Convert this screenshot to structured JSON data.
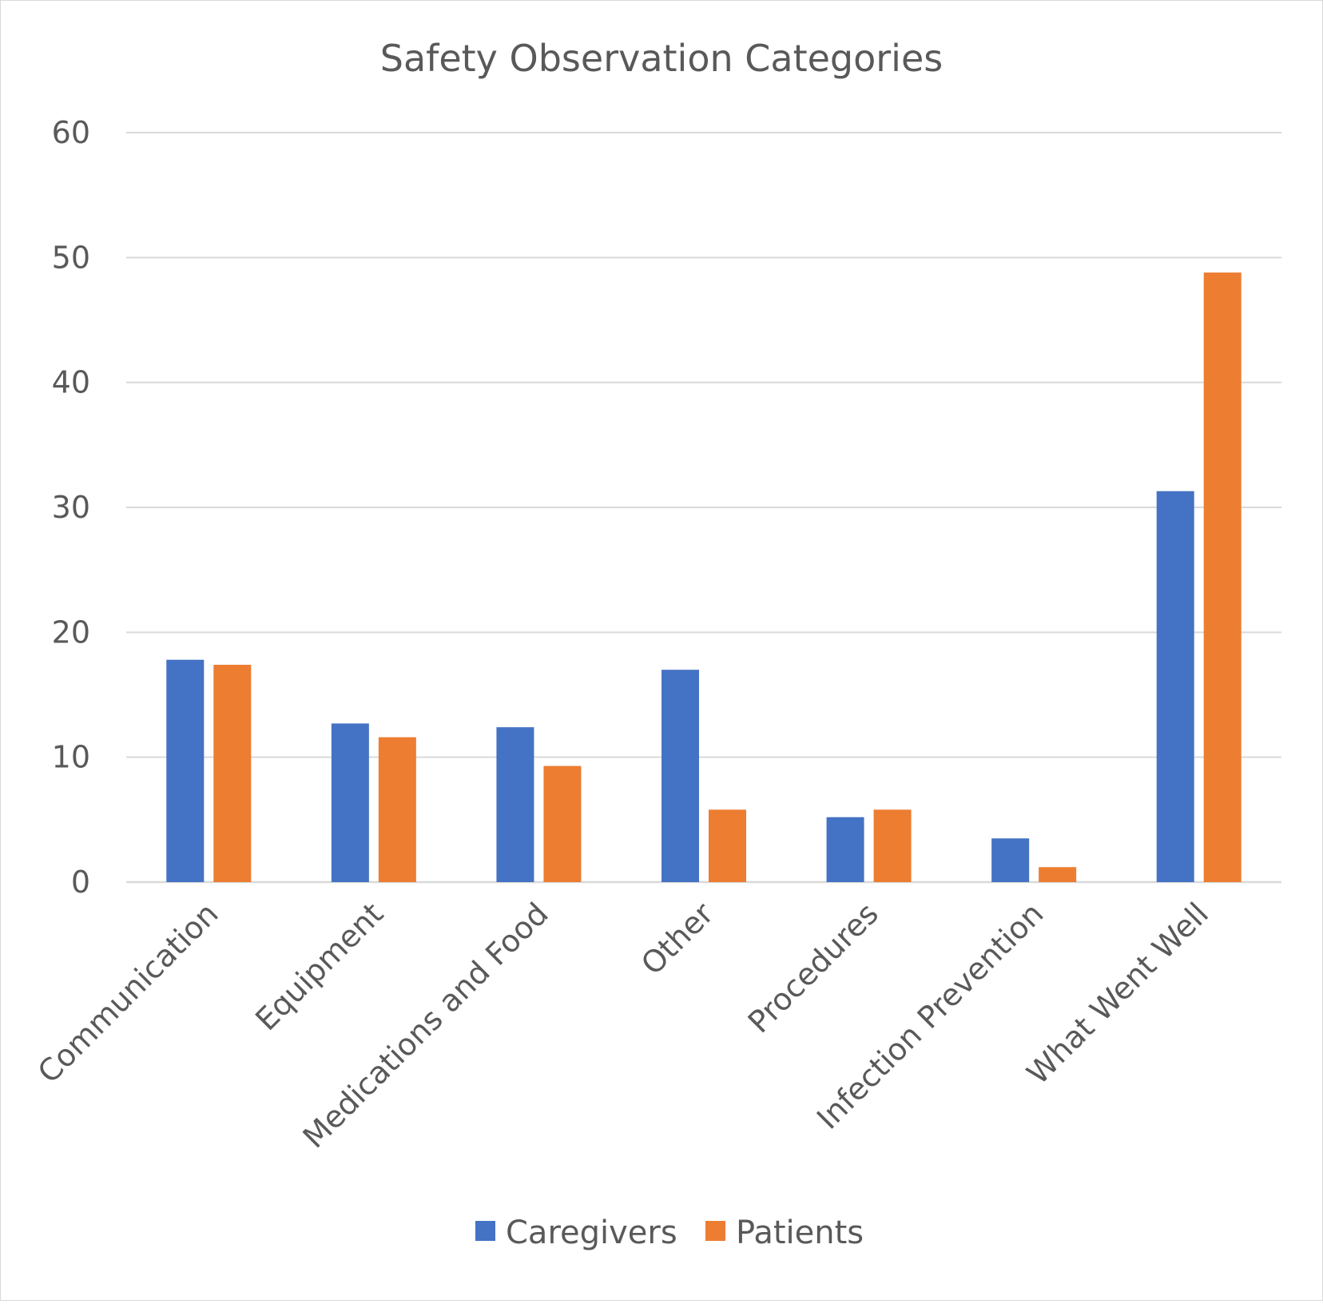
{
  "chart_data": {
    "type": "bar",
    "title": "Safety Observation Categories",
    "xlabel": "",
    "ylabel": "",
    "ylim": [
      0,
      60
    ],
    "yticks": [
      0,
      10,
      20,
      30,
      40,
      50,
      60
    ],
    "grid": true,
    "legend_position": "bottom",
    "categories": [
      "Communication",
      "Equipment",
      "Medications and Food",
      "Other",
      "Procedures",
      "Infection Prevention",
      "What Went Well"
    ],
    "series": [
      {
        "name": "Caregivers",
        "color": "#4472C4",
        "values": [
          17.8,
          12.7,
          12.4,
          17.0,
          5.2,
          3.5,
          31.3
        ]
      },
      {
        "name": "Patients",
        "color": "#ED7D31",
        "values": [
          17.4,
          11.6,
          9.3,
          5.8,
          5.8,
          1.2,
          48.8
        ]
      }
    ]
  }
}
